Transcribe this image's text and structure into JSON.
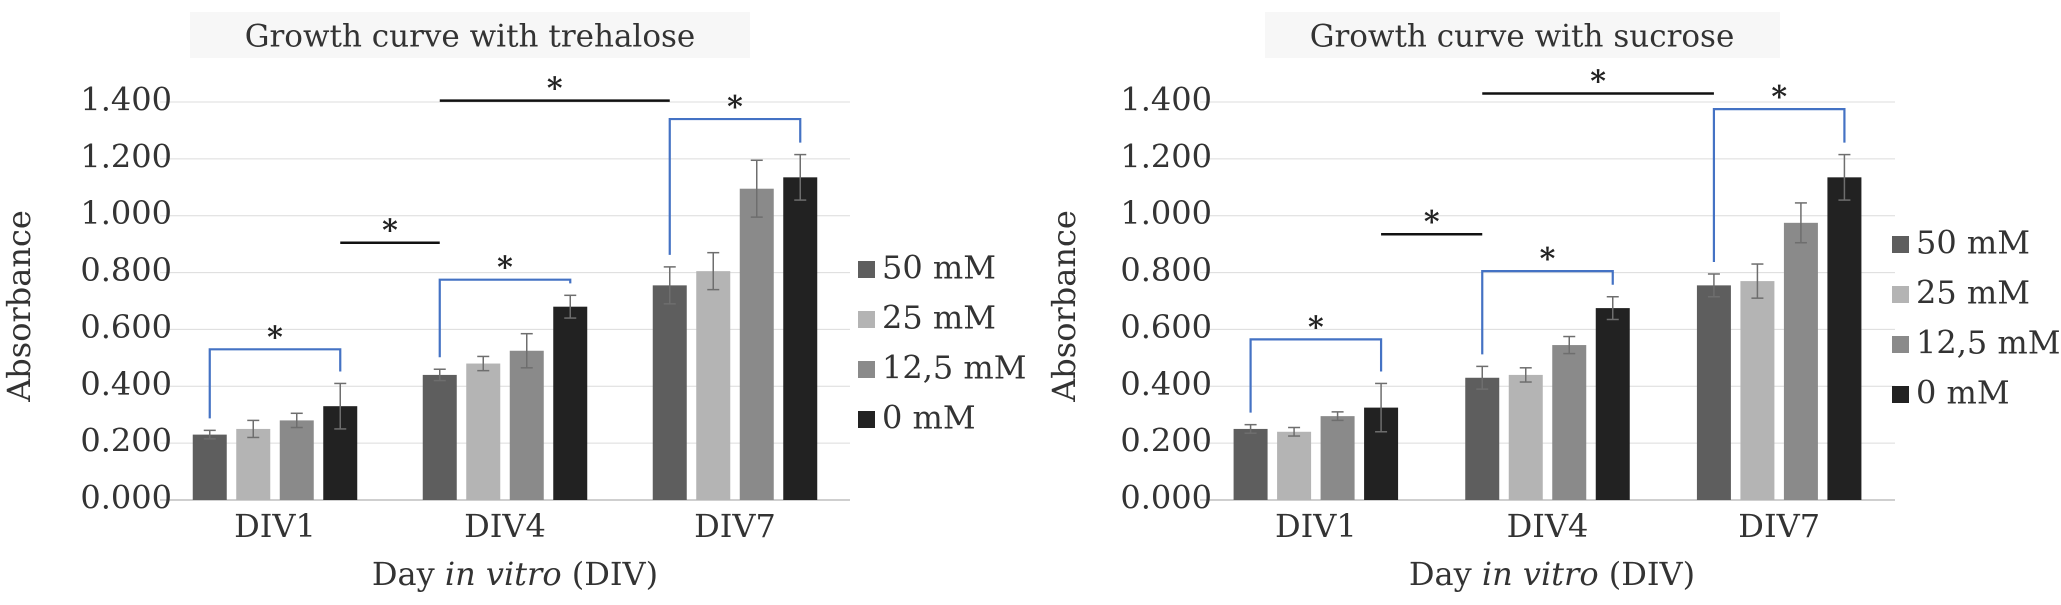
{
  "chart_data": [
    {
      "type": "bar",
      "title": "Growth curve with trehalose",
      "xlabel_parts": [
        "Day ",
        "in vitro",
        " (DIV)"
      ],
      "ylabel": "Absorbance",
      "categories": [
        "DIV1",
        "DIV4",
        "DIV7"
      ],
      "ylim": [
        0,
        1.4
      ],
      "yticks": [
        "0.000",
        "0.200",
        "0.400",
        "0.600",
        "0.800",
        "1.000",
        "1.200",
        "1.400"
      ],
      "grid": true,
      "legend_position": "right",
      "series": [
        {
          "name": "50 mM",
          "color": "#5e5e5e",
          "values": [
            0.23,
            0.44,
            0.755
          ],
          "errors": [
            0.015,
            0.02,
            0.065
          ]
        },
        {
          "name": "25 mM",
          "color": "#b4b4b4",
          "values": [
            0.25,
            0.48,
            0.805
          ],
          "errors": [
            0.03,
            0.025,
            0.065
          ]
        },
        {
          "name": "12,5 mM",
          "color": "#8a8a8a",
          "values": [
            0.28,
            0.525,
            1.095
          ],
          "errors": [
            0.025,
            0.06,
            0.1
          ]
        },
        {
          "name": "0 mM",
          "color": "#222222",
          "values": [
            0.33,
            0.68,
            1.135
          ],
          "errors": [
            0.08,
            0.04,
            0.08
          ]
        }
      ],
      "annotations": [
        {
          "type": "bracket",
          "color": "#4472c4",
          "from_category": "DIV1",
          "from_series": "50 mM",
          "to_category": "DIV1",
          "to_series": "0 mM",
          "y": 0.53,
          "label": "*"
        },
        {
          "type": "bracket",
          "color": "#4472c4",
          "from_category": "DIV4",
          "from_series": "50 mM",
          "to_category": "DIV4",
          "to_series": "0 mM",
          "y": 0.775,
          "label": "*"
        },
        {
          "type": "bracket",
          "color": "#4472c4",
          "from_category": "DIV7",
          "from_series": "50 mM",
          "to_category": "DIV7",
          "to_series": "0 mM",
          "y": 1.34,
          "label": "*"
        },
        {
          "type": "line",
          "color": "#111111",
          "from_category": "DIV1",
          "from_series": "0 mM",
          "to_category": "DIV4",
          "to_series": "50 mM",
          "y": 0.905,
          "label": "*"
        },
        {
          "type": "line",
          "color": "#111111",
          "from_category": "DIV4",
          "from_series": "50 mM",
          "to_category": "DIV7",
          "to_series": "50 mM",
          "y": 1.405,
          "label": "*"
        }
      ]
    },
    {
      "type": "bar",
      "title": "Growth curve with sucrose",
      "xlabel_parts": [
        "Day ",
        "in vitro",
        " (DIV)"
      ],
      "ylabel": "Absorbance",
      "categories": [
        "DIV1",
        "DIV4",
        "DIV7"
      ],
      "ylim": [
        0,
        1.4
      ],
      "yticks": [
        "0.000",
        "0.200",
        "0.400",
        "0.600",
        "0.800",
        "1.000",
        "1.200",
        "1.400"
      ],
      "grid": true,
      "legend_position": "right",
      "series": [
        {
          "name": "50 mM",
          "color": "#5e5e5e",
          "values": [
            0.25,
            0.43,
            0.755
          ],
          "errors": [
            0.015,
            0.04,
            0.04
          ]
        },
        {
          "name": "25 mM",
          "color": "#b4b4b4",
          "values": [
            0.24,
            0.44,
            0.77
          ],
          "errors": [
            0.015,
            0.025,
            0.06
          ]
        },
        {
          "name": "12,5 mM",
          "color": "#8a8a8a",
          "values": [
            0.295,
            0.545,
            0.975
          ],
          "errors": [
            0.015,
            0.03,
            0.07
          ]
        },
        {
          "name": "0 mM",
          "color": "#222222",
          "values": [
            0.325,
            0.675,
            1.135
          ],
          "errors": [
            0.085,
            0.04,
            0.08
          ]
        }
      ],
      "annotations": [
        {
          "type": "bracket",
          "color": "#4472c4",
          "from_category": "DIV1",
          "from_series": "50 mM",
          "to_category": "DIV1",
          "to_series": "0 mM",
          "y": 0.565,
          "label": "*"
        },
        {
          "type": "bracket",
          "color": "#4472c4",
          "from_category": "DIV4",
          "from_series": "50 mM",
          "to_category": "DIV4",
          "to_series": "0 mM",
          "y": 0.805,
          "label": "*"
        },
        {
          "type": "bracket",
          "color": "#4472c4",
          "from_category": "DIV7",
          "from_series": "50 mM",
          "to_category": "DIV7",
          "to_series": "0 mM",
          "y": 1.375,
          "label": "*"
        },
        {
          "type": "line",
          "color": "#111111",
          "from_category": "DIV1",
          "from_series": "0 mM",
          "to_category": "DIV4",
          "to_series": "50 mM",
          "y": 0.935,
          "label": "*"
        },
        {
          "type": "line",
          "color": "#111111",
          "from_category": "DIV4",
          "from_series": "50 mM",
          "to_category": "DIV7",
          "to_series": "50 mM",
          "y": 1.43,
          "label": "*"
        }
      ]
    }
  ]
}
